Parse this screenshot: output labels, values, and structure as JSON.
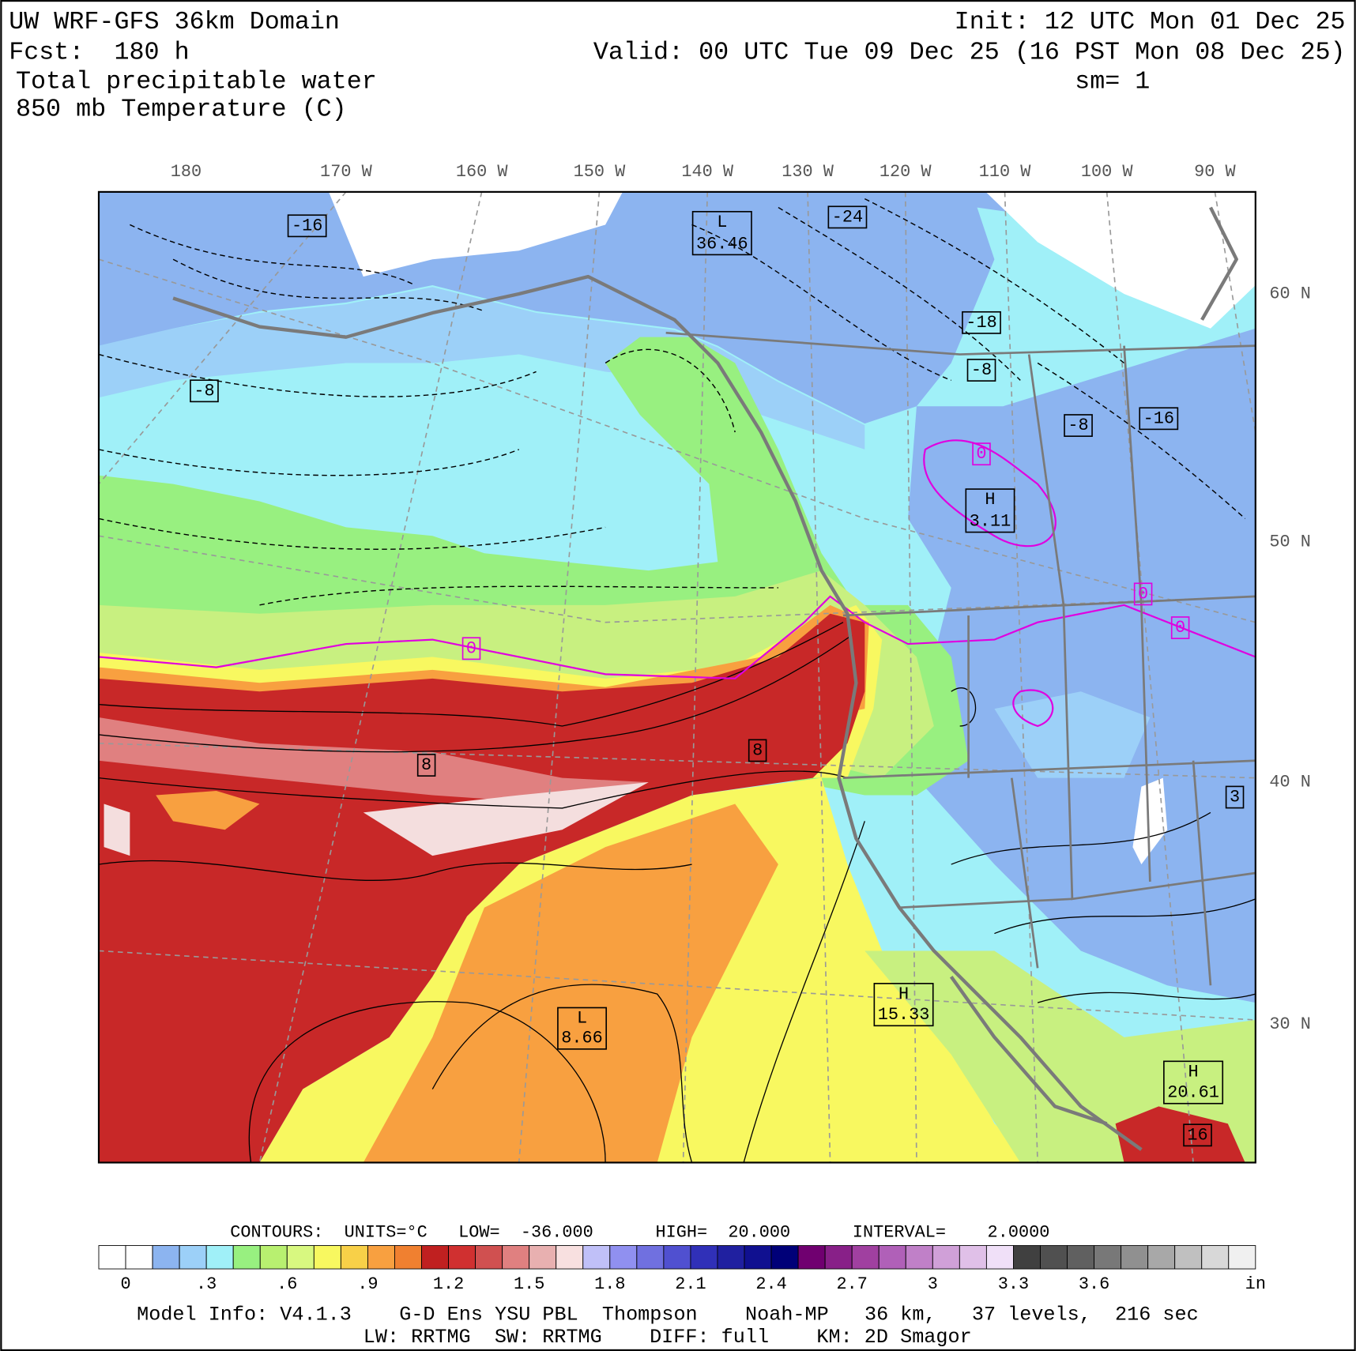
{
  "header": {
    "title": "UW WRF-GFS 36km Domain",
    "forecast": "Fcst:  180 h",
    "field_1": "Total precipitable water",
    "field_2": "850 mb Temperature (C)",
    "init": "Init: 12 UTC Mon 01 Dec 25",
    "valid": "Valid: 00 UTC Tue 09 Dec 25 (16 PST Mon 08 Dec 25)",
    "smoothing": "sm= 1"
  },
  "map": {
    "longitude_labels": [
      "180",
      "170 W",
      "160 W",
      "150 W",
      "140 W",
      "130 W",
      "120 W",
      "110 W",
      "100 W",
      "90 W"
    ],
    "latitude_labels": [
      "60 N",
      "50 N",
      "40 N",
      "30 N"
    ],
    "contour_labels": [
      "-16",
      "-24",
      "-18",
      "-8",
      "-8",
      "-8",
      "-16",
      "0",
      "0",
      "0",
      "0",
      "8",
      "8",
      "3",
      "16"
    ],
    "centers": [
      {
        "symbol": "L",
        "value": "36.46"
      },
      {
        "symbol": "H",
        "value": "3.11"
      },
      {
        "symbol": "L",
        "value": "8.66"
      },
      {
        "symbol": "H",
        "value": "15.33"
      },
      {
        "symbol": "H",
        "value": "20.61"
      }
    ]
  },
  "legend": {
    "contours": "CONTOURS:  UNITS=°C   LOW=  -36.000      HIGH=  20.000      INTERVAL=    2.0000",
    "colors": [
      "#ffffff",
      "#ffffff",
      "#8cb4f0",
      "#9cd0f8",
      "#a0f0f8",
      "#98f080",
      "#b8f070",
      "#d8f880",
      "#f8f860",
      "#f8d048",
      "#f8a040",
      "#f08030",
      "#c02020",
      "#d03030",
      "#d05050",
      "#e08080",
      "#e8b0b0",
      "#f8e0e0",
      "#c0c0f8",
      "#9090f0",
      "#7070e0",
      "#5050d0",
      "#3030b8",
      "#2020a0",
      "#101090",
      "#000078",
      "#700070",
      "#882088",
      "#a040a0",
      "#b060b8",
      "#c080c8",
      "#d0a0d8",
      "#e0c0e8",
      "#f0e0f8",
      "#404040",
      "#505050",
      "#606060",
      "#787878",
      "#909090",
      "#a8a8a8",
      "#c0c0c0",
      "#d8d8d8",
      "#f0f0f0"
    ],
    "labels": [
      "0",
      ".3",
      ".6",
      ".9",
      "1.2",
      "1.5",
      "1.8",
      "2.1",
      "2.4",
      "2.7",
      "3",
      "3.3",
      "3.6",
      "in"
    ]
  },
  "footer": {
    "line_1": "Model Info: V4.1.3    G-D Ens YSU PBL  Thompson    Noah-MP   36 km,   37 levels,  216 sec",
    "line_2": "LW: RRTMG  SW: RRTMG    DIFF: full    KM: 2D Smagor"
  }
}
